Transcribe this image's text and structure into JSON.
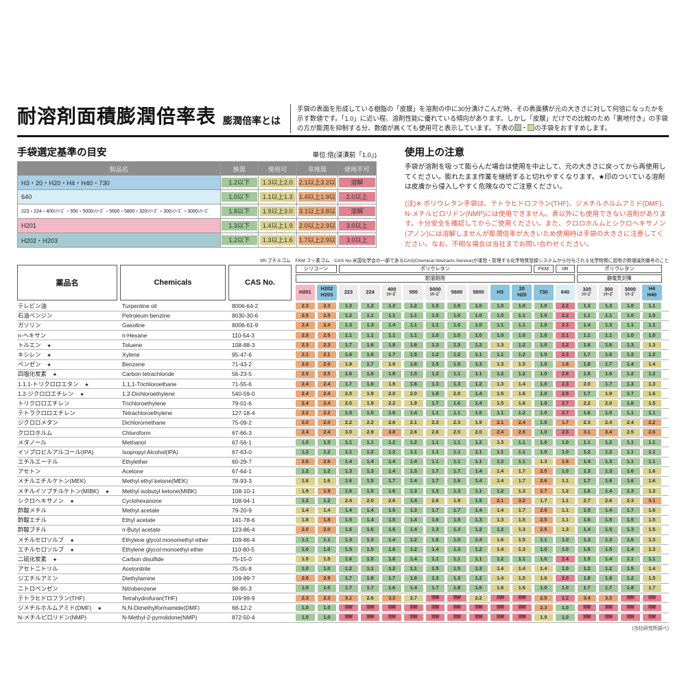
{
  "header": {
    "title": "耐溶剤面積膨潤倍率表",
    "subtitle": "膨潤倍率とは",
    "desc_p1": "手袋の表面を形成している樹脂の「皮膜」を溶剤の中に30分漬けこんだ時、その表面積が元の大きさに対して何倍になったかを示す数値です。「1.0」に近い程、溶剤性能に優れている傾向があります。しかし「皮膜」だけでの比較のため「裏地付き」の手袋の方が膨潤を抑制する分、数値が高くても使用可と表示しています。下表の",
    "desc_sep": "・",
    "desc_p2": "の手袋をおすすめします。"
  },
  "selection": {
    "title": "手袋選定基準の目安",
    "unit_note": "単位:倍(浸漬前「1.0」)",
    "headers": [
      "製品名",
      "推奨",
      "使用可",
      "非推奨",
      "使用不可"
    ],
    "rows": [
      {
        "name": "H3・20・H20・H4・H40・730",
        "color": "#a9cfe4",
        "long": false,
        "values": [
          "1.2以下",
          "1.3以上2.0以下",
          "2.1以上3.2以下",
          "溶解"
        ]
      },
      {
        "name": "640",
        "color": "#d9edf5",
        "long": false,
        "values": [
          "1.0以下",
          "1.1以上1.3以下",
          "1.4以上1.9以下",
          "2.0以上"
        ]
      },
      {
        "name": "223・224・400ｼﾘｰｽﾞ・550・5000ｼﾘｰｽﾞ・5600・5800・320ｼﾘｰｽﾞ・300ｼﾘｰｽﾞ・3000ｼﾘｰｽﾞ",
        "color": "#ffffff",
        "long": true,
        "values": [
          "1.8以下",
          "1.9以上3.0以下",
          "3.1以上3.8以下",
          "溶解"
        ]
      },
      {
        "name": "H201",
        "color": "#f3b9c6",
        "long": false,
        "values": [
          "1.3以下",
          "1.4以上1.9以下",
          "2.0以上2.9以下",
          "3.0以上"
        ]
      },
      {
        "name": "H202・H203",
        "color": "#a5cbd2",
        "long": false,
        "values": [
          "1.2以下",
          "1.3以上1.6以下",
          "1.7以上2.9以下",
          "3.0以上"
        ]
      }
    ]
  },
  "notes": {
    "title": "使用上の注意",
    "p1": "手袋が溶剤を吸って膨らんだ場合は使用を中止して、元の大きさに戻ってから再使用してください。膨れたまま作業を継続すると切れやすくなります。★印のついている溶剤は皮膚から侵入しやすく危険なのでご注意ください。",
    "p2": "(注)※ ポリウレタン手袋は、テトラヒドロフラン(THF)、ジメチルホルムアミド(DMF)、N-メチルピロリドン(NMP)には使用できません。表以外にも使用できない溶剤があります。十分安全を確認してからご使用ください。また、クロロホルムとシクロヘキサノン(アノン)には溶解しませんが膨潤倍率が大きいため使用時は手袋の大きさに注意してください。なお、不明な場合は当社までお問い合わせください。"
  },
  "main_table": {
    "abbrev_note": "IIR:ブチルゴム　FKM:フッ素ゴム　CAS No:米国化学会の一部であるCAS(Chemical Abstracts Service)が運営・管理する化学物質登録システムから付与される化学物質に固有の数値識別番号のこと",
    "left_headers": {
      "jp": "薬品名",
      "en": "Chemicals",
      "cas": "CAS No."
    },
    "material_groups": [
      {
        "label": "シリコーン",
        "span": 2
      },
      {
        "label": "ポリウレタン",
        "span": 9
      },
      {
        "label": "FKM",
        "span": 1
      },
      {
        "label": "IIR",
        "span": 1
      },
      {
        "label": "ポリウレタン",
        "span": 4
      }
    ],
    "category_groups": [
      {
        "label": "耐溶剤用",
        "span": 13
      },
      {
        "label": "静電気対策",
        "span": 4
      }
    ],
    "products": [
      {
        "lines": [
          "H201"
        ],
        "color": "#f3b9c6",
        "group": "h201"
      },
      {
        "lines": [
          "H202",
          "H203"
        ],
        "color": "#8bc4dd",
        "group": "h202"
      },
      {
        "lines": [
          "223"
        ],
        "color": "#ececec",
        "group": "std"
      },
      {
        "lines": [
          "224"
        ],
        "color": "#ececec",
        "group": "std"
      },
      {
        "lines": [
          "400",
          "ｼﾘｰｽﾞ"
        ],
        "color": "#ececec",
        "group": "std"
      },
      {
        "lines": [
          "550"
        ],
        "color": "#ececec",
        "group": "std"
      },
      {
        "lines": [
          "5000",
          "ｼﾘｰｽﾞ"
        ],
        "color": "#ececec",
        "group": "std"
      },
      {
        "lines": [
          "5600"
        ],
        "color": "#ececec",
        "group": "std"
      },
      {
        "lines": [
          "5800"
        ],
        "color": "#ececec",
        "group": "std"
      },
      {
        "lines": [
          "H3"
        ],
        "color": "#8bc4dd",
        "group": "blue"
      },
      {
        "lines": [
          "20",
          "H20"
        ],
        "color": "#8bc4dd",
        "group": "blue"
      },
      {
        "lines": [
          "730"
        ],
        "color": "#8bc4dd",
        "group": "blue"
      },
      {
        "lines": [
          "640"
        ],
        "color": "#d9edf5",
        "group": "g640"
      },
      {
        "lines": [
          "320",
          "ｼﾘｰｽﾞ"
        ],
        "color": "#ececec",
        "group": "std"
      },
      {
        "lines": [
          "300",
          "ｼﾘｰｽﾞ"
        ],
        "color": "#ececec",
        "group": "std"
      },
      {
        "lines": [
          "3000",
          "ｼﾘｰｽﾞ"
        ],
        "color": "#ececec",
        "group": "std"
      },
      {
        "lines": [
          "H4",
          "H40"
        ],
        "color": "#8bc4dd",
        "group": "blue"
      }
    ],
    "thresholds": {
      "h201": [
        1.3,
        1.9,
        2.9
      ],
      "h202": [
        1.2,
        1.6,
        2.9
      ],
      "blue": [
        1.2,
        2.0,
        3.2
      ],
      "g640": [
        1.0,
        1.3,
        1.9
      ],
      "std": [
        1.8,
        3.0,
        3.8
      ]
    },
    "star_symbol": "★",
    "dissolve_label": "溶解",
    "footnote": "(当社研究所調べ)",
    "rows": [
      {
        "jp": "テレビン油",
        "star": false,
        "en": "Turpentine oil",
        "cas": "8006-64-2",
        "v": [
          "2.3",
          "2.3",
          "1.3",
          "1.2",
          "1.3",
          "1.2",
          "1.0",
          "1.0",
          "1.0",
          "1.0",
          "1.0",
          "1.0",
          "2.2",
          "1.3",
          "1.3",
          "1.0",
          "1.1"
        ]
      },
      {
        "jp": "石油ベンジン",
        "star": false,
        "en": "Petroleum benzine",
        "cas": "8030-30-6",
        "v": [
          "2.5",
          "2.5",
          "1.2",
          "1.1",
          "1.1",
          "1.1",
          "1.0",
          "1.0",
          "1.0",
          "1.0",
          "1.1",
          "1.0",
          "2.2",
          "1.1",
          "1.1",
          "1.0",
          "1.0"
        ]
      },
      {
        "jp": "ガソリン",
        "star": false,
        "en": "Gasoline",
        "cas": "8006-61-9",
        "v": [
          "2.4",
          "2.4",
          "1.3",
          "1.3",
          "1.4",
          "1.1",
          "1.1",
          "1.0",
          "1.0",
          "1.1",
          "1.1",
          "1.0",
          "2.3",
          "1.4",
          "1.3",
          "1.1",
          "1.1"
        ]
      },
      {
        "jp": "n-ヘキサン",
        "star": false,
        "en": "n-Hexane",
        "cas": "110-54-3",
        "v": [
          "2.5",
          "2.5",
          "1.1",
          "1.1",
          "1.1",
          "1.1",
          "1.0",
          "1.0",
          "1.0",
          "1.0",
          "1.0",
          "1.0",
          "2.1",
          "1.1",
          "1.1",
          "1.0",
          "1.0"
        ]
      },
      {
        "jp": "トルエン",
        "star": true,
        "en": "Toluene",
        "cas": "108-88-3",
        "v": [
          "2.3",
          "2.3",
          "1.7",
          "1.6",
          "1.8",
          "1.6",
          "1.3",
          "1.3",
          "1.2",
          "1.3",
          "1.2",
          "1.0",
          "2.2",
          "1.8",
          "1.6",
          "1.3",
          "1.3"
        ]
      },
      {
        "jp": "キシレン",
        "star": true,
        "en": "Xylene",
        "cas": "95-47-6",
        "v": [
          "2.1",
          "2.1",
          "1.6",
          "1.6",
          "1.7",
          "1.5",
          "1.2",
          "1.2",
          "1.1",
          "1.1",
          "1.2",
          "1.0",
          "2.3",
          "1.7",
          "1.6",
          "1.2",
          "1.2"
        ]
      },
      {
        "jp": "ベンゼン",
        "star": true,
        "en": "Benzene",
        "cas": "71-43-2",
        "v": [
          "2.0",
          "2.0",
          "1.9",
          "1.7",
          "1.9",
          "1.6",
          "1.5",
          "1.5",
          "1.3",
          "1.3",
          "1.5",
          "1.0",
          "1.8",
          "1.8",
          "1.7",
          "1.4",
          "1.4"
        ]
      },
      {
        "jp": "四塩化炭素",
        "star": true,
        "en": "Carbon tetrachloride",
        "cas": "56-23-5",
        "v": [
          "2.5",
          "2.5",
          "1.6",
          "1.6",
          "1.8",
          "1.5",
          "1.2",
          "1.1",
          "1.1",
          "1.2",
          "1.2",
          "1.0",
          "2.6",
          "1.8",
          "1.6",
          "1.2",
          "1.2"
        ]
      },
      {
        "jp": "1.1.1-トリクロロエタン",
        "star": true,
        "en": "1,1,1-Trichloroethane",
        "cas": "71-55-6",
        "v": [
          "2.4",
          "2.4",
          "1.7",
          "1.6",
          "1.9",
          "1.6",
          "1.3",
          "1.3",
          "1.2",
          "1.3",
          "1.4",
          "1.0",
          "2.3",
          "2.0",
          "1.7",
          "1.3",
          "1.3"
        ]
      },
      {
        "jp": "1.2-ジクロロエチレン",
        "star": true,
        "en": "1.2-Dichloroethylene",
        "cas": "540-59-0",
        "v": [
          "2.4",
          "2.4",
          "2.0",
          "1.9",
          "2.0",
          "2.0",
          "1.6",
          "2.0",
          "1.4",
          "1.5",
          "1.6",
          "1.0",
          "2.5",
          "1.7",
          "1.9",
          "1.7",
          "1.6"
        ]
      },
      {
        "jp": "トリクロロエチレン",
        "star": false,
        "en": "Trichloroethylene",
        "cas": "79-01-6",
        "v": [
          "2.4",
          "2.4",
          "2.0",
          "1.9",
          "2.2",
          "1.9",
          "1.7",
          "1.6",
          "1.4",
          "1.5",
          "1.6",
          "1.0",
          "2.7",
          "2.2",
          "2.0",
          "1.6",
          "1.5"
        ]
      },
      {
        "jp": "テトラクロロエチレン",
        "star": false,
        "en": "Tetrachloroethylene",
        "cas": "127-18-4",
        "v": [
          "2.2",
          "2.2",
          "1.5",
          "1.5",
          "1.6",
          "1.4",
          "1.1",
          "1.1",
          "1.0",
          "1.1",
          "1.2",
          "1.0",
          "2.7",
          "1.6",
          "1.5",
          "1.1",
          "1.1"
        ]
      },
      {
        "jp": "ジクロロメタン",
        "star": false,
        "en": "Dichloromethane",
        "cas": "75-09-2",
        "v": [
          "2.0",
          "2.0",
          "2.2",
          "2.2",
          "2.6",
          "2.1",
          "2.3",
          "2.3",
          "1.9",
          "2.1",
          "2.4",
          "1.0",
          "1.7",
          "2.3",
          "2.4",
          "2.4",
          "2.2"
        ]
      },
      {
        "jp": "クロロホルム",
        "star": false,
        "en": "Chloroform",
        "cas": "67-66-3",
        "v": [
          "2.4",
          "2.4",
          "3.0",
          "2.9",
          "3.8",
          "2.6",
          "2.6",
          "2.5",
          "2.0",
          "2.4",
          "2.6",
          "1.0",
          "2.5",
          "3.1",
          "3.4",
          "2.5",
          "2.6"
        ]
      },
      {
        "jp": "メタノール",
        "star": false,
        "en": "Methanol",
        "cas": "67-56-1",
        "v": [
          "1.0",
          "1.0",
          "1.1",
          "1.1",
          "1.2",
          "1.2",
          "1.1",
          "1.1",
          "1.2",
          "1.3",
          "1.1",
          "1.0",
          "1.0",
          "1.1",
          "1.2",
          "1.1",
          "1.1"
        ]
      },
      {
        "jp": "イソプロピルアルコール(IPA)",
        "star": false,
        "en": "Isopropyl Alcohol(IPA)",
        "cas": "67-63-0",
        "v": [
          "1.2",
          "1.2",
          "1.1",
          "1.2",
          "1.2",
          "1.1",
          "1.1",
          "1.1",
          "1.1",
          "1.1",
          "1.1",
          "1.0",
          "1.0",
          "1.2",
          "1.2",
          "1.1",
          "1.1"
        ]
      },
      {
        "jp": "エチルエーテル",
        "star": false,
        "en": "Ethylether",
        "cas": "60-29-7",
        "v": [
          "2.6",
          "2.6",
          "1.4",
          "1.4",
          "1.4",
          "1.4",
          "1.1",
          "1.1",
          "1.1",
          "1.2",
          "1.1",
          "1.3",
          "1.6",
          "1.4",
          "1.3",
          "1.1",
          "1.1"
        ]
      },
      {
        "jp": "アセトン",
        "star": false,
        "en": "Acetone",
        "cas": "67-64-1",
        "v": [
          "1.2",
          "1.2",
          "1.3",
          "1.3",
          "1.4",
          "1.3",
          "1.7",
          "1.7",
          "1.4",
          "1.4",
          "1.7",
          "2.5",
          "1.0",
          "1.3",
          "1.3",
          "1.6",
          "1.6"
        ]
      },
      {
        "jp": "メチルエチルケトン(MEK)",
        "star": false,
        "en": "Methyl ethyl ketone(MEK)",
        "cas": "78-93-3",
        "v": [
          "1.6",
          "1.6",
          "1.6",
          "1.5",
          "1.7",
          "1.4",
          "1.7",
          "1.6",
          "1.4",
          "1.4",
          "1.7",
          "2.6",
          "1.1",
          "1.7",
          "1.6",
          "1.6",
          "1.6"
        ]
      },
      {
        "jp": "メチルイソブチルケトン(MIBK)",
        "star": true,
        "en": "Methyl isobutyl ketone(MIBK)",
        "cas": "108-10-1",
        "v": [
          "1.9",
          "1.9",
          "1.6",
          "1.5",
          "1.6",
          "1.3",
          "1.3",
          "1.3",
          "1.1",
          "1.2",
          "1.3",
          "2.7",
          "1.2",
          "1.6",
          "1.4",
          "1.3",
          "1.3"
        ]
      },
      {
        "jp": "シクロヘキサノン",
        "star": true,
        "en": "Cyclohexanone",
        "cas": "108-94-1",
        "v": [
          "1.2",
          "1.2",
          "2.4",
          "2.0",
          "2.6",
          "1.4",
          "2.6",
          "1.9",
          "1.5",
          "2.1",
          "3.2",
          "1.7",
          "1.1",
          "2.7",
          "2.6",
          "2.3",
          "3.1"
        ]
      },
      {
        "jp": "酢酸メチル",
        "star": false,
        "en": "Methyl acetate",
        "cas": "79-20-9",
        "v": [
          "1.4",
          "1.4",
          "1.4",
          "1.4",
          "1.5",
          "1.3",
          "1.7",
          "1.7",
          "1.4",
          "1.4",
          "1.7",
          "2.5",
          "1.1",
          "1.5",
          "1.4",
          "1.7",
          "1.6"
        ]
      },
      {
        "jp": "酢酸エチル",
        "star": false,
        "en": "Ethyl acetate",
        "cas": "141-78-6",
        "v": [
          "1.8",
          "1.8",
          "1.5",
          "1.4",
          "1.5",
          "1.4",
          "1.6",
          "1.5",
          "1.3",
          "1.3",
          "1.5",
          "2.5",
          "1.1",
          "1.6",
          "1.5",
          "1.5",
          "1.5"
        ]
      },
      {
        "jp": "酢酸ブチル",
        "star": false,
        "en": "n-Butyl acetate",
        "cas": "123-86-4",
        "v": [
          "2.0",
          "2.0",
          "1.6",
          "1.6",
          "1.6",
          "1.4",
          "1.3",
          "1.3",
          "1.2",
          "1.2",
          "1.3",
          "2.5",
          "1.3",
          "1.4",
          "1.5",
          "1.3",
          "1.5"
        ]
      },
      {
        "jp": "メチルセロソルブ",
        "star": true,
        "en": "Ethylene glycol monomethyl ether",
        "cas": "109-86-4",
        "v": [
          "1.1",
          "1.1",
          "1.3",
          "1.3",
          "1.4",
          "1.2",
          "1.6",
          "1.5",
          "1.4",
          "1.6",
          "1.5",
          "1.1",
          "1.0",
          "1.3",
          "1.3",
          "1.6",
          "1.3"
        ]
      },
      {
        "jp": "エチルセロソルブ",
        "star": true,
        "en": "Ethylene glycol monoethyl ether",
        "cas": "110-80-5",
        "v": [
          "1.0",
          "1.0",
          "1.5",
          "1.5",
          "1.6",
          "1.2",
          "1.4",
          "1.3",
          "1.2",
          "1.4",
          "1.3",
          "1.0",
          "1.0",
          "1.6",
          "1.5",
          "1.4",
          "1.3"
        ]
      },
      {
        "jp": "二硫化炭素",
        "star": true,
        "en": "Carbon disulfide",
        "cas": "75-15-0",
        "v": [
          "1.5",
          "1.5",
          "1.6",
          "1.5",
          "1.6",
          "1.4",
          "1.1",
          "1.1",
          "1.1",
          "1.2",
          "1.1",
          "1.0",
          "2.4",
          "1.5",
          "1.4",
          "1.1",
          "1.1"
        ]
      },
      {
        "jp": "アセトニトリル",
        "star": false,
        "en": "Acetonitrile",
        "cas": "75-05-8",
        "v": [
          "1.0",
          "1.0",
          "1.2",
          "1.1",
          "1.2",
          "1.1",
          "1.5",
          "1.5",
          "1.3",
          "1.4",
          "1.4",
          "1.4",
          "1.0",
          "1.2",
          "1.2",
          "1.5",
          "1.4"
        ]
      },
      {
        "jp": "ジエチルアミン",
        "star": false,
        "en": "Diethylamine",
        "cas": "109-89-7",
        "v": [
          "2.9",
          "2.9",
          "1.7",
          "1.8",
          "1.7",
          "1.6",
          "1.3",
          "1.3",
          "1.2",
          "1.4",
          "1.5",
          "1.6",
          "2.0",
          "1.8",
          "1.8",
          "1.2",
          "1.5"
        ]
      },
      {
        "jp": "ニトロベンゼン",
        "star": false,
        "en": "Nitrobenzene",
        "cas": "98-95-3",
        "v": [
          "1.0",
          "1.0",
          "1.7",
          "1.7",
          "1.6",
          "1.4",
          "1.7",
          "1.8",
          "1.5",
          "1.6",
          "1.6",
          "1.0",
          "1.0",
          "1.7",
          "1.7",
          "1.8",
          "1.7"
        ]
      },
      {
        "jp": "テトラヒドロフラン(THF)",
        "star": false,
        "en": "Tetrahydrofuran(THF)",
        "cas": "109-99-9",
        "v": [
          "2.3",
          "2.3",
          "3.1",
          "2.6",
          "3.3",
          "2.7",
          "溶解",
          "溶解",
          "2.2",
          "溶解",
          "溶解",
          "2.5",
          "2.2",
          "3.4",
          "3.3",
          "溶解",
          "溶解"
        ]
      },
      {
        "jp": "ジメチルホルムアミド(DMF)",
        "star": true,
        "en": "N,N-Dimethylformamide(DMF)",
        "cas": "68-12-2",
        "v": [
          "1.0",
          "1.0",
          "溶解",
          "溶解",
          "溶解",
          "溶解",
          "溶解",
          "溶解",
          "溶解",
          "溶解",
          "溶解",
          "2.3",
          "1.0",
          "溶解",
          "溶解",
          "溶解",
          "溶解"
        ]
      },
      {
        "jp": "N-メチルピロリドン(NMP)",
        "star": false,
        "en": "N-Methyl-2-pyrrolidone(NMP)",
        "cas": "872-50-4",
        "v": [
          "1.0",
          "1.0",
          "溶解",
          "溶解",
          "溶解",
          "溶解",
          "溶解",
          "溶解",
          "溶解",
          "溶解",
          "溶解",
          "1.9",
          "1.0",
          "溶解",
          "溶解",
          "溶解",
          "溶解"
        ]
      }
    ]
  },
  "palette": {
    "recommended": "#a3c89b",
    "usable": "#d9d28f",
    "not_recommended": "#e9a878",
    "unusable": "#e08390",
    "red_text": "#e0533f"
  }
}
